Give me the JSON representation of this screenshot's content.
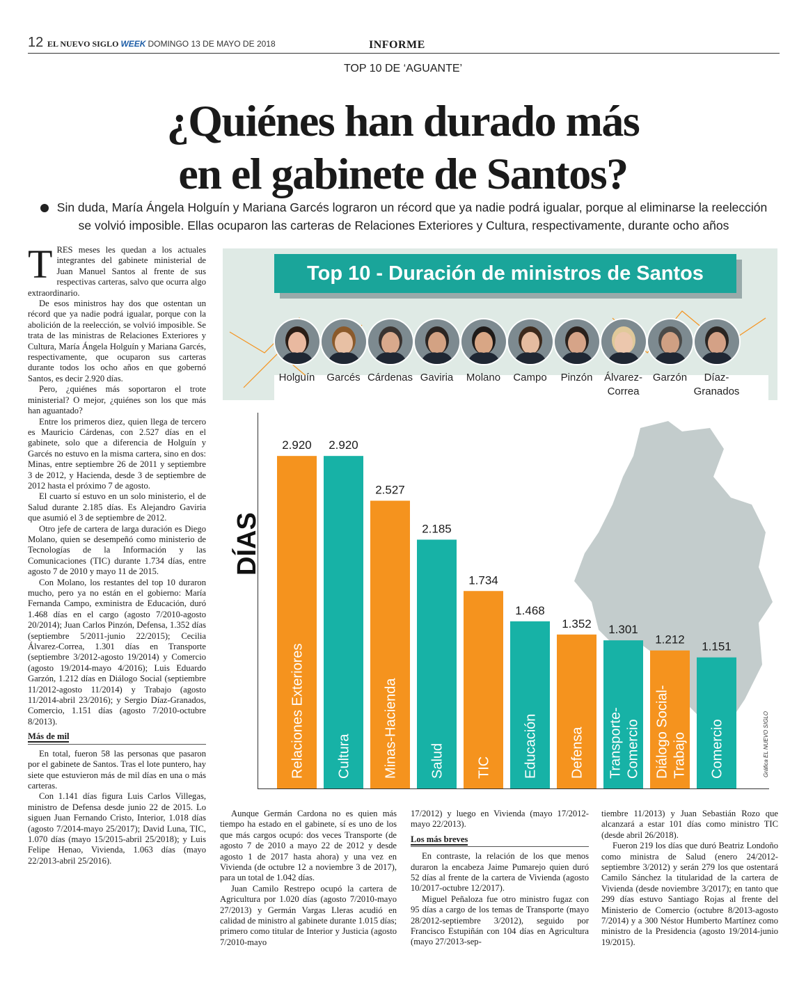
{
  "header": {
    "page_number": "12",
    "publication": "EL NUEVO SIGLO",
    "publication_week": "WEEK",
    "date": "DOMINGO 13 DE MAYO DE 2018",
    "section": "INFORME"
  },
  "kicker": "TOP 10 DE ‘AGUANTE’",
  "title_line1": "¿Quiénes han durado más",
  "title_line2": "en el gabinete de Santos?",
  "dek": "Sin duda, María Ángela Holguín y Mariana Garcés lograron un récord que ya nadie podrá igualar, porque al eliminarse la reelección se volvió imposible. Ellas ocuparon las carteras de Relaciones Exteriores y Cultura, respectivamente, durante ocho años",
  "left_column": {
    "dropcap": "T",
    "p1": "RES meses les quedan a los actuales integrantes del gabinete ministerial de Juan Manuel Santos al frente de sus respectivas carteras, salvo que ocurra algo extraordinario.",
    "p2": "De esos ministros hay dos que ostentan un récord que ya nadie podrá igualar, porque con la abolición de la reelección, se volvió imposible. Se trata de las ministras de Relaciones Exteriores y Cultura, María Ángela Holguín y Mariana Garcés, respectivamente, que ocuparon sus carteras durante todos los ocho años en que gobernó Santos, es decir 2.920 días.",
    "p3": "Pero, ¿quiénes más soportaron el trote ministerial? O mejor, ¿quiénes son los que más han aguantado?",
    "p4": "Entre los primeros diez, quien llega de tercero es Mauricio Cárdenas, con 2.527 días en el gabinete, solo que a diferencia de Holguín y Garcés no estuvo en la misma cartera, sino en dos: Minas, entre septiembre 26 de 2011 y septiembre 3 de 2012, y Hacienda, desde 3 de septiembre de 2012 hasta el próximo 7 de agosto.",
    "p5": "El cuarto sí estuvo en un solo ministerio, el de Salud durante 2.185 días. Es Alejandro Gaviria que asumió el 3 de septiembre de 2012.",
    "p6": "Otro jefe de cartera de larga duración es Diego Molano, quien se desempeñó como ministerio de Tecnologías de la Información y las Comunicaciones (TIC) durante 1.734 días, entre agosto 7 de 2010 y mayo 11 de 2015.",
    "p7": "Con Molano, los restantes del top 10 duraron mucho, pero ya no están en el gobierno: María Fernanda Campo, exministra de Educación, duró 1.468 días en el cargo (agosto 7/2010-agosto 20/2014); Juan Carlos Pinzón, Defensa, 1.352 días (septiembre 5/2011-junio 22/2015); Cecilia Álvarez-Correa, 1.301 días en Transporte (septiembre 3/2012-agosto 19/2014) y Comercio (agosto 19/2014-mayo 4/2016); Luis Eduardo Garzón, 1.212 días en Diálogo Social (septiembre 11/2012-agosto 11/2014) y Trabajo (agosto 11/2014-abril 23/2016); y Sergio Díaz-Granados, Comercio, 1.151 días (agosto 7/2010-octubre 8/2013).",
    "subhead": "Más de mil",
    "p8": "En total, fueron 58 las personas que pasaron por el gabinete de Santos. Tras el lote puntero, hay siete que estuvieron más de mil días en una o más carteras.",
    "p9": "Con 1.141 días figura Luis Carlos Villegas, ministro de Defensa desde junio 22 de 2015. Lo siguen Juan Fernando Cristo, Interior, 1.018 días (agosto 7/2014-mayo 25/2017); David Luna, TIC, 1.070 días (mayo 15/2015-abril 25/2018); y Luis Felipe Henao, Vivienda, 1.063 días (mayo 22/2013-abril 25/2016)."
  },
  "col2": {
    "p1": "Aunque Germán Cardona no es quien más tiempo ha estado en el gabinete, sí es uno de los que más cargos ocupó: dos veces Transporte (de agosto 7 de 2010 a mayo 22 de 2012 y desde agosto 1 de 2017 hasta ahora) y una vez en Vivienda (de octubre 12 a noviembre 3 de 2017), para un total de 1.042 días.",
    "p2": "Juan Camilo Restrepo ocupó la cartera de Agricultura por 1.020 días (agosto 7/2010-mayo 27/2013) y Germán Vargas Lleras acudió en calidad de ministro al gabinete durante 1.015 días; primero como titular de Interior y Justicia (agosto 7/2010-mayo"
  },
  "col3": {
    "p1": "17/2012) y luego en Vivienda (mayo 17/2012-mayo 22/2013).",
    "subhead": "Los más breves",
    "p2": "En contraste, la relación de los que menos duraron la encabeza Jaime Pumarejo quien duró 52 días al frente de la cartera de Vivienda (agosto 10/2017-octubre 12/2017).",
    "p3": "Miguel Peñaloza fue otro ministro fugaz con 95 días a cargo de los temas de Transporte (mayo 28/2012-septiembre 3/2012), seguido por Francisco Estupiñán con 104 días en Agricultura (mayo 27/2013-sep-"
  },
  "col4": {
    "p1": "tiembre 11/2013) y Juan Sebastián Rozo que alcanzará a estar 101 días como ministro TIC (desde abril 26/2018).",
    "p2": "Fueron 219 los días que duró Beatriz Londoño como ministra de Salud (enero 24/2012-septiembre 3/2012) y serán 279 los que ostentará Camilo Sánchez la titularidad de la cartera de Vivienda (desde noviembre 3/2017); en tanto que 299 días estuvo Santiago Rojas al frente del Ministerio de Comercio (octubre 8/2013-agosto 7/2014) y a 300 Néstor Humberto Martínez como ministro de la Presidencia (agosto 19/2014-junio 19/2015)."
  },
  "chart_data": {
    "type": "bar",
    "title": "Top 10 - Duración de ministros de Santos",
    "ylabel": "DÍAS",
    "credit": "Gráfica EL NUEVO SIGLO",
    "ylim": [
      0,
      3300
    ],
    "people": [
      "Holguín",
      "Garcés",
      "Cárdenas",
      "Gaviria",
      "Molano",
      "Campo",
      "Pinzón",
      "Álvarez-\nCorrea",
      "Garzón",
      "Díaz-\nGranados"
    ],
    "categories": [
      "Relaciones Exteriores",
      "Cultura",
      "Minas-Hacienda",
      "Salud",
      "TIC",
      "Educación",
      "Defensa",
      "Transporte-\nComercio",
      "Diálogo Social-\nTrabajo",
      "Comercio"
    ],
    "values": [
      2920,
      2920,
      2527,
      2185,
      1734,
      1468,
      1352,
      1301,
      1212,
      1151
    ],
    "value_labels": [
      "2.920",
      "2.920",
      "2.527",
      "2.185",
      "1.734",
      "1.468",
      "1.352",
      "1.301",
      "1.212",
      "1.151"
    ],
    "bar_colors": [
      "#f5931e",
      "#17b2a6",
      "#f5931e",
      "#17b2a6",
      "#f5931e",
      "#17b2a6",
      "#f5931e",
      "#17b2a6",
      "#f5931e",
      "#17b2a6"
    ],
    "colors": {
      "orange": "#f5931e",
      "teal": "#17b2a6",
      "banner": "#1aa59a",
      "map": "#c3cccc"
    }
  }
}
